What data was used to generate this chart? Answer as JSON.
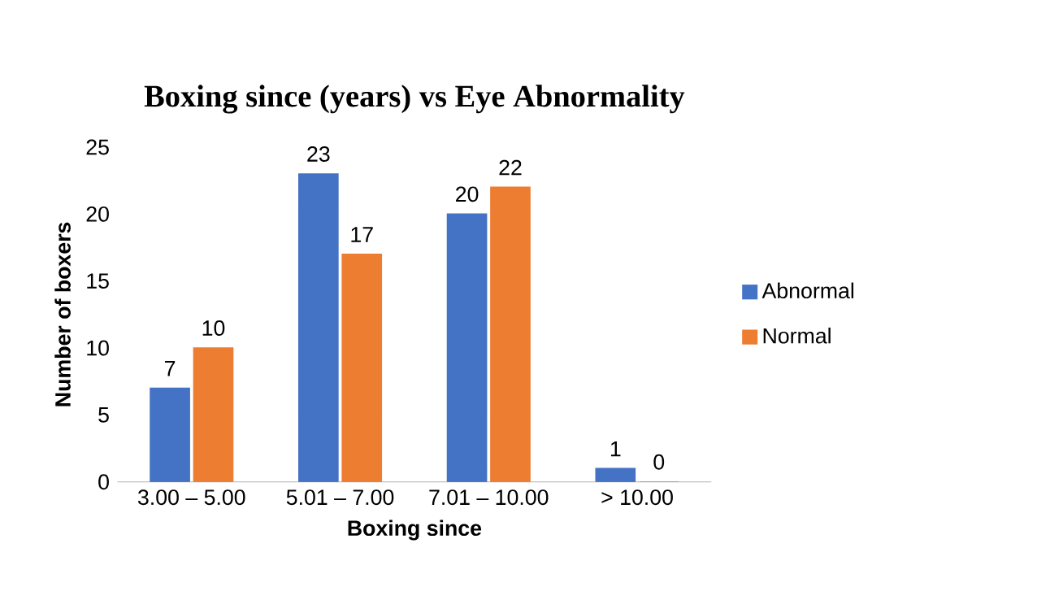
{
  "chart_data": {
    "type": "bar",
    "title": "Boxing since (years) vs Eye Abnormality",
    "xlabel": "Boxing since",
    "ylabel": "Number of boxers",
    "categories": [
      "3.00 – 5.00",
      "5.01 – 7.00",
      "7.01 – 10.00",
      "> 10.00"
    ],
    "series": [
      {
        "name": "Abnormal",
        "color": "#4472c4",
        "values": [
          7,
          23,
          20,
          1
        ]
      },
      {
        "name": "Normal",
        "color": "#ed7d31",
        "values": [
          10,
          17,
          22,
          0
        ]
      }
    ],
    "ylim": [
      0,
      25
    ],
    "yticks": [
      0,
      5,
      10,
      15,
      20,
      25
    ],
    "data_labels": true,
    "legend": "right",
    "grid": false
  }
}
